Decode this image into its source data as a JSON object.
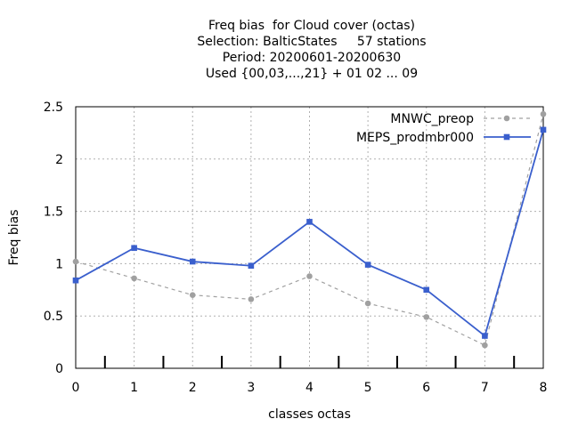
{
  "chart_data": {
    "type": "line",
    "title_lines": [
      "Freq bias  for Cloud cover (octas)",
      "Selection: BalticStates     57 stations",
      "Period: 20200601-20200630",
      "Used {00,03,...,21} + 01 02 ... 09"
    ],
    "xlabel": "classes octas",
    "ylabel": "Freq bias",
    "xlim": [
      0,
      8
    ],
    "ylim": [
      0,
      2.5
    ],
    "x_ticks": [
      "0",
      "1",
      "2",
      "3",
      "4",
      "5",
      "6",
      "7",
      "8"
    ],
    "y_ticks": [
      "0",
      "0.5",
      "1",
      "1.5",
      "2",
      "2.5"
    ],
    "grid": true,
    "legend_position": "top-right",
    "x": [
      0,
      1,
      2,
      3,
      4,
      5,
      6,
      7,
      8
    ],
    "series": [
      {
        "name": "MNWC_preop",
        "color": "#a0a0a0",
        "style": "dashed",
        "values": [
          1.02,
          0.86,
          0.7,
          0.66,
          0.88,
          0.62,
          0.49,
          0.22,
          2.43
        ]
      },
      {
        "name": "MEPS_prodmbr000",
        "color": "#3a5fcd",
        "style": "solid",
        "values": [
          0.84,
          1.15,
          1.02,
          0.98,
          1.4,
          0.99,
          0.75,
          0.31,
          2.28
        ]
      }
    ]
  }
}
